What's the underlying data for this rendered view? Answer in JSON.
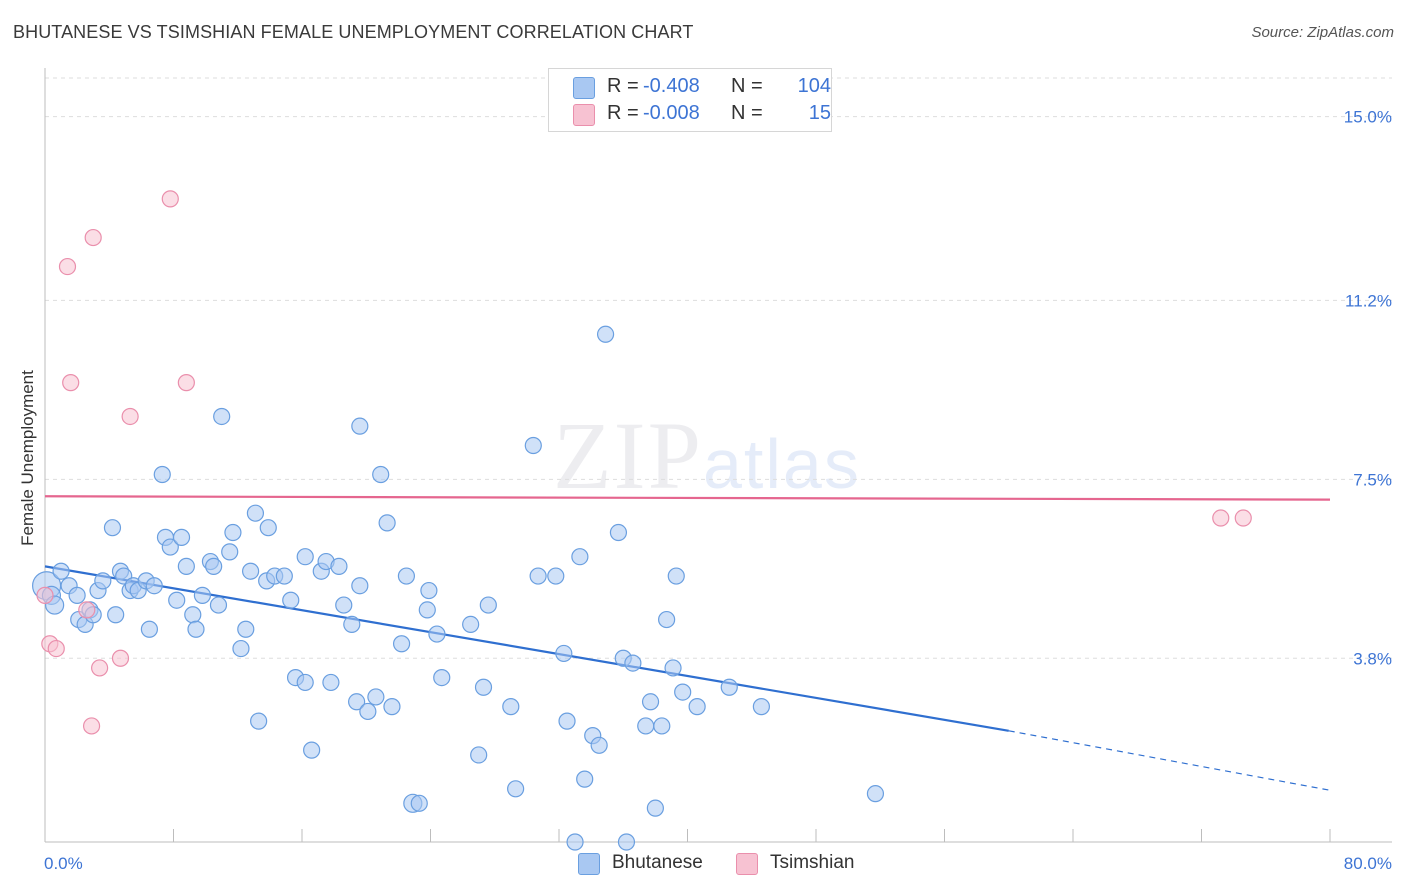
{
  "title": "BHUTANESE VS TSIMSHIAN FEMALE UNEMPLOYMENT CORRELATION CHART",
  "source": "Source: ZipAtlas.com",
  "watermark": {
    "zip": "ZIP",
    "atlas": "atlas"
  },
  "legend": [
    {
      "r_label": "R =",
      "r_value": "-0.408",
      "n_label": "N =",
      "n_value": "104"
    },
    {
      "r_label": "R =",
      "r_value": "-0.008",
      "n_label": "N =",
      "n_value": "15"
    }
  ],
  "colors": {
    "bhutanese_fill": "#a9c8f2",
    "bhutanese_stroke": "#6a9fe0",
    "bhutanese_line": "#2f6fd0",
    "tsimshian_fill": "#f7c2d2",
    "tsimshian_stroke": "#ea8fac",
    "tsimshian_line": "#e5668f",
    "tick_label": "#3d74d4",
    "grid": "#dddddd"
  },
  "chart_data": {
    "type": "scatter",
    "title": "BHUTANESE VS TSIMSHIAN FEMALE UNEMPLOYMENT CORRELATION CHART",
    "xlabel": "",
    "ylabel": "Female Unemployment",
    "xlim": [
      0,
      80
    ],
    "ylim": [
      0,
      15.8
    ],
    "x_tick_labels": [
      "0.0%",
      "80.0%"
    ],
    "y_ticks": [
      3.8,
      7.5,
      11.2,
      15.0
    ],
    "y_tick_labels": [
      "3.8%",
      "7.5%",
      "11.2%",
      "15.0%"
    ],
    "grid": "horizontal dashed",
    "legend_position": "top-center",
    "series": [
      {
        "name": "Bhutanese",
        "r": -0.408,
        "n": 104,
        "trend": {
          "x0": 0,
          "y0": 5.7,
          "x1": 60,
          "y1": 2.3,
          "x_dashed_end": 80,
          "y_dashed_end": 1.07
        },
        "points": [
          [
            0.1,
            5.3,
            3
          ],
          [
            0.4,
            5.1,
            2
          ],
          [
            0.6,
            4.9,
            2
          ],
          [
            1.0,
            5.6,
            1
          ],
          [
            1.5,
            5.3,
            1
          ],
          [
            2.0,
            5.1,
            1
          ],
          [
            2.1,
            4.6,
            1
          ],
          [
            2.5,
            4.5,
            1
          ],
          [
            2.8,
            4.8,
            1
          ],
          [
            3.0,
            4.7,
            1
          ],
          [
            3.3,
            5.2,
            1
          ],
          [
            3.6,
            5.4,
            1
          ],
          [
            4.2,
            6.5,
            1
          ],
          [
            4.4,
            4.7,
            1
          ],
          [
            4.7,
            5.6,
            1
          ],
          [
            4.9,
            5.5,
            1
          ],
          [
            5.3,
            5.2,
            1
          ],
          [
            5.5,
            5.3,
            1
          ],
          [
            5.8,
            5.2,
            1
          ],
          [
            6.3,
            5.4,
            1
          ],
          [
            6.5,
            4.4,
            1
          ],
          [
            6.8,
            5.3,
            1
          ],
          [
            7.3,
            7.6,
            1
          ],
          [
            7.5,
            6.3,
            1
          ],
          [
            7.8,
            6.1,
            1
          ],
          [
            8.2,
            5.0,
            1
          ],
          [
            8.5,
            6.3,
            1
          ],
          [
            8.8,
            5.7,
            1
          ],
          [
            9.2,
            4.7,
            1
          ],
          [
            9.4,
            4.4,
            1
          ],
          [
            9.8,
            5.1,
            1
          ],
          [
            10.3,
            5.8,
            1
          ],
          [
            10.5,
            5.7,
            1
          ],
          [
            10.8,
            4.9,
            1
          ],
          [
            11.0,
            8.8,
            1
          ],
          [
            11.5,
            6.0,
            1
          ],
          [
            11.7,
            6.4,
            1
          ],
          [
            12.2,
            4.0,
            1
          ],
          [
            12.5,
            4.4,
            1
          ],
          [
            12.8,
            5.6,
            1
          ],
          [
            13.1,
            6.8,
            1
          ],
          [
            13.3,
            2.5,
            1
          ],
          [
            13.8,
            5.4,
            1
          ],
          [
            13.9,
            6.5,
            1
          ],
          [
            14.3,
            5.5,
            1
          ],
          [
            14.9,
            5.5,
            1
          ],
          [
            15.3,
            5.0,
            1
          ],
          [
            15.6,
            3.4,
            1
          ],
          [
            16.2,
            3.3,
            1
          ],
          [
            16.2,
            5.9,
            1
          ],
          [
            16.6,
            1.9,
            1
          ],
          [
            17.2,
            5.6,
            1
          ],
          [
            17.5,
            5.8,
            1
          ],
          [
            17.8,
            3.3,
            1
          ],
          [
            18.3,
            5.7,
            1
          ],
          [
            18.6,
            4.9,
            1
          ],
          [
            19.1,
            4.5,
            1
          ],
          [
            19.4,
            2.9,
            1
          ],
          [
            19.6,
            5.3,
            1
          ],
          [
            19.6,
            8.6,
            1
          ],
          [
            20.1,
            2.7,
            1
          ],
          [
            20.6,
            3.0,
            1
          ],
          [
            20.9,
            7.6,
            1
          ],
          [
            21.3,
            6.6,
            1
          ],
          [
            21.6,
            2.8,
            1
          ],
          [
            22.2,
            4.1,
            1
          ],
          [
            22.5,
            5.5,
            1
          ],
          [
            22.9,
            0.8,
            2
          ],
          [
            23.3,
            0.8,
            1
          ],
          [
            23.8,
            4.8,
            1
          ],
          [
            23.9,
            5.2,
            1
          ],
          [
            24.4,
            4.3,
            1
          ],
          [
            24.7,
            3.4,
            1
          ],
          [
            26.5,
            4.5,
            1
          ],
          [
            27.0,
            1.8,
            1
          ],
          [
            27.3,
            3.2,
            1
          ],
          [
            27.6,
            4.9,
            1
          ],
          [
            29.0,
            2.8,
            1
          ],
          [
            29.3,
            1.1,
            1
          ],
          [
            30.4,
            8.2,
            1
          ],
          [
            30.7,
            5.5,
            1
          ],
          [
            31.8,
            5.5,
            1
          ],
          [
            32.3,
            3.9,
            1
          ],
          [
            32.5,
            2.5,
            1
          ],
          [
            33.0,
            0.0,
            1
          ],
          [
            33.3,
            5.9,
            1
          ],
          [
            33.6,
            1.3,
            1
          ],
          [
            34.1,
            2.2,
            1
          ],
          [
            34.5,
            2.0,
            1
          ],
          [
            34.9,
            10.5,
            1
          ],
          [
            35.7,
            6.4,
            1
          ],
          [
            36.0,
            3.8,
            1
          ],
          [
            36.2,
            0.0,
            1
          ],
          [
            36.6,
            3.7,
            1
          ],
          [
            37.4,
            2.4,
            1
          ],
          [
            37.7,
            2.9,
            1
          ],
          [
            38.0,
            0.7,
            1
          ],
          [
            38.4,
            2.4,
            1
          ],
          [
            38.7,
            4.6,
            1
          ],
          [
            39.1,
            3.6,
            1
          ],
          [
            39.3,
            5.5,
            1
          ],
          [
            39.7,
            3.1,
            1
          ],
          [
            40.6,
            2.8,
            1
          ],
          [
            42.6,
            3.2,
            1
          ],
          [
            44.6,
            2.8,
            1
          ],
          [
            51.7,
            1.0,
            1
          ]
        ]
      },
      {
        "name": "Tsimshian",
        "r": -0.008,
        "n": 15,
        "trend": {
          "x0": 0,
          "y0": 7.15,
          "x1": 80,
          "y1": 7.08
        },
        "points": [
          [
            0.0,
            5.1,
            1
          ],
          [
            0.3,
            4.1,
            1
          ],
          [
            0.7,
            4.0,
            1
          ],
          [
            1.4,
            11.9,
            1
          ],
          [
            1.6,
            9.5,
            1
          ],
          [
            2.6,
            4.8,
            1
          ],
          [
            2.9,
            2.4,
            1
          ],
          [
            3.0,
            12.5,
            1
          ],
          [
            3.4,
            3.6,
            1
          ],
          [
            4.7,
            3.8,
            1
          ],
          [
            5.3,
            8.8,
            1
          ],
          [
            7.8,
            13.3,
            1
          ],
          [
            8.8,
            9.5,
            1
          ],
          [
            73.2,
            6.7,
            1
          ],
          [
            74.6,
            6.7,
            1
          ]
        ]
      }
    ]
  }
}
